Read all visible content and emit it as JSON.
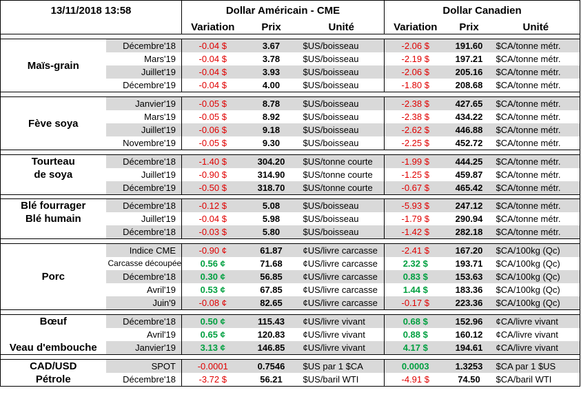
{
  "header": {
    "date": "13/11/2018 13:58",
    "usd_title": "Dollar Américain - CME",
    "cad_title": "Dollar Canadien",
    "col_variation": "Variation",
    "col_prix": "Prix",
    "col_unite": "Unité"
  },
  "groups": [
    {
      "name": [
        "Maïs-grain"
      ],
      "rows": [
        {
          "m": "Décembre'18",
          "v": "-0.04 $",
          "vs": "neg",
          "p": "3.67",
          "u": "$US/boisseau",
          "cv": "-2.06 $",
          "cvs": "neg",
          "cp": "191.60",
          "cu": "$CA/tonne métr."
        },
        {
          "m": "Mars'19",
          "v": "-0.04 $",
          "vs": "neg",
          "p": "3.78",
          "u": "$US/boisseau",
          "cv": "-2.19 $",
          "cvs": "neg",
          "cp": "197.21",
          "cu": "$CA/tonne métr."
        },
        {
          "m": "Juillet'19",
          "v": "-0.04 $",
          "vs": "neg",
          "p": "3.93",
          "u": "$US/boisseau",
          "cv": "-2.06 $",
          "cvs": "neg",
          "cp": "205.16",
          "cu": "$CA/tonne métr."
        },
        {
          "m": "Décembre'19",
          "v": "-0.04 $",
          "vs": "neg",
          "p": "4.00",
          "u": "$US/boisseau",
          "cv": "-1.80 $",
          "cvs": "neg",
          "cp": "208.68",
          "cu": "$CA/tonne métr."
        }
      ]
    },
    {
      "name": [
        "Fève soya"
      ],
      "rows": [
        {
          "m": "Janvier'19",
          "v": "-0.05 $",
          "vs": "neg",
          "p": "8.78",
          "u": "$US/boisseau",
          "cv": "-2.38 $",
          "cvs": "neg",
          "cp": "427.65",
          "cu": "$CA/tonne métr."
        },
        {
          "m": "Mars'19",
          "v": "-0.05 $",
          "vs": "neg",
          "p": "8.92",
          "u": "$US/boisseau",
          "cv": "-2.38 $",
          "cvs": "neg",
          "cp": "434.22",
          "cu": "$CA/tonne métr."
        },
        {
          "m": "Juillet'19",
          "v": "-0.06 $",
          "vs": "neg",
          "p": "9.18",
          "u": "$US/boisseau",
          "cv": "-2.62 $",
          "cvs": "neg",
          "cp": "446.88",
          "cu": "$CA/tonne métr."
        },
        {
          "m": "Novembre'19",
          "v": "-0.05 $",
          "vs": "neg",
          "p": "9.30",
          "u": "$US/boisseau",
          "cv": "-2.25 $",
          "cvs": "neg",
          "cp": "452.72",
          "cu": "$CA/tonne métr."
        }
      ]
    },
    {
      "name": [
        "Tourteau",
        "de soya"
      ],
      "rows": [
        {
          "m": "Décembre'18",
          "v": "-1.40 $",
          "vs": "neg",
          "p": "304.20",
          "u": "$US/tonne courte",
          "cv": "-1.99 $",
          "cvs": "neg",
          "cp": "444.25",
          "cu": "$CA/tonne métr."
        },
        {
          "m": "Juillet'19",
          "v": "-0.90 $",
          "vs": "neg",
          "p": "314.90",
          "u": "$US/tonne courte",
          "cv": "-1.25 $",
          "cvs": "neg",
          "cp": "459.87",
          "cu": "$CA/tonne métr."
        },
        {
          "m": "Décembre'19",
          "v": "-0.50 $",
          "vs": "neg",
          "p": "318.70",
          "u": "$US/tonne courte",
          "cv": "-0.67 $",
          "cvs": "neg",
          "cp": "465.42",
          "cu": "$CA/tonne métr."
        }
      ]
    },
    {
      "name": [
        "Blé fourrager",
        "Blé humain"
      ],
      "rows": [
        {
          "m": "Décembre'18",
          "v": "-0.12 $",
          "vs": "neg",
          "p": "5.08",
          "u": "$US/boisseau",
          "cv": "-5.93 $",
          "cvs": "neg",
          "cp": "247.12",
          "cu": "$CA/tonne métr."
        },
        {
          "m": "Juillet'19",
          "v": "-0.04 $",
          "vs": "neg",
          "p": "5.98",
          "u": "$US/boisseau",
          "cv": "-1.79 $",
          "cvs": "neg",
          "cp": "290.94",
          "cu": "$CA/tonne métr."
        },
        {
          "m": "Décembre'18",
          "v": "-0.03 $",
          "vs": "neg",
          "p": "5.80",
          "u": "$US/boisseau",
          "cv": "-1.42 $",
          "cvs": "neg",
          "cp": "282.18",
          "cu": "$CA/tonne métr."
        }
      ]
    },
    {
      "name": [
        "Porc"
      ],
      "rows": [
        {
          "m": "Indice CME",
          "v": "-0.90 ¢",
          "vs": "neg",
          "p": "61.87",
          "u": "¢US/livre carcasse",
          "cv": "-2.41 $",
          "cvs": "neg",
          "cp": "167.20",
          "cu": "$CA/100kg (Qc)"
        },
        {
          "m": "Carcasse découpée",
          "v": "0.56 ¢",
          "vs": "pos",
          "p": "71.68",
          "u": "¢US/livre carcasse",
          "cv": "2.32 $",
          "cvs": "pos",
          "cp": "193.71",
          "cu": "$CA/100kg (Qc)"
        },
        {
          "m": "Décembre'18",
          "v": "0.30 ¢",
          "vs": "pos",
          "p": "56.85",
          "u": "¢US/livre carcasse",
          "cv": "0.83 $",
          "cvs": "pos",
          "cp": "153.63",
          "cu": "$CA/100kg (Qc)"
        },
        {
          "m": "Avril'19",
          "v": "0.53 ¢",
          "vs": "pos",
          "p": "67.85",
          "u": "¢US/livre carcasse",
          "cv": "1.44 $",
          "cvs": "pos",
          "cp": "183.36",
          "cu": "$CA/100kg (Qc)"
        },
        {
          "m": "Juin'9",
          "v": "-0.08 ¢",
          "vs": "neg",
          "p": "82.65",
          "u": "¢US/livre carcasse",
          "cv": "-0.17 $",
          "cvs": "neg",
          "cp": "223.36",
          "cu": "$CA/100kg (Qc)"
        }
      ]
    },
    {
      "name": [
        "Bœuf",
        "",
        "Veau d'embouche"
      ],
      "rows": [
        {
          "m": "Décembre'18",
          "v": "0.50 ¢",
          "vs": "pos",
          "p": "115.43",
          "u": "¢US/livre vivant",
          "cv": "0.68 $",
          "cvs": "pos",
          "cp": "152.96",
          "cu": "¢CA/livre vivant"
        },
        {
          "m": "Avril'19",
          "v": "0.65 ¢",
          "vs": "pos",
          "p": "120.83",
          "u": "¢US/livre vivant",
          "cv": "0.88 $",
          "cvs": "pos",
          "cp": "160.12",
          "cu": "¢CA/livre vivant"
        },
        {
          "m": "Janvier'19",
          "v": "3.13 ¢",
          "vs": "pos",
          "p": "146.85",
          "u": "¢US/livre vivant",
          "cv": "4.17 $",
          "cvs": "pos",
          "cp": "194.61",
          "cu": "¢CA/livre vivant"
        }
      ]
    },
    {
      "name": [
        "CAD/USD",
        "Pétrole"
      ],
      "rows": [
        {
          "m": "SPOT",
          "v": "-0.0001",
          "vs": "neg",
          "p": "0.7546",
          "u": "$US par 1 $CA",
          "cv": "0.0003",
          "cvs": "pos",
          "cp": "1.3253",
          "cu": "$CA par 1 $US"
        },
        {
          "m": "Décembre'18",
          "v": "-3.72 $",
          "vs": "neg",
          "p": "56.21",
          "u": "$US/baril WTI",
          "cv": "-4.91 $",
          "cvs": "neg",
          "cp": "74.50",
          "cu": "$CA/baril WTI"
        }
      ]
    }
  ]
}
